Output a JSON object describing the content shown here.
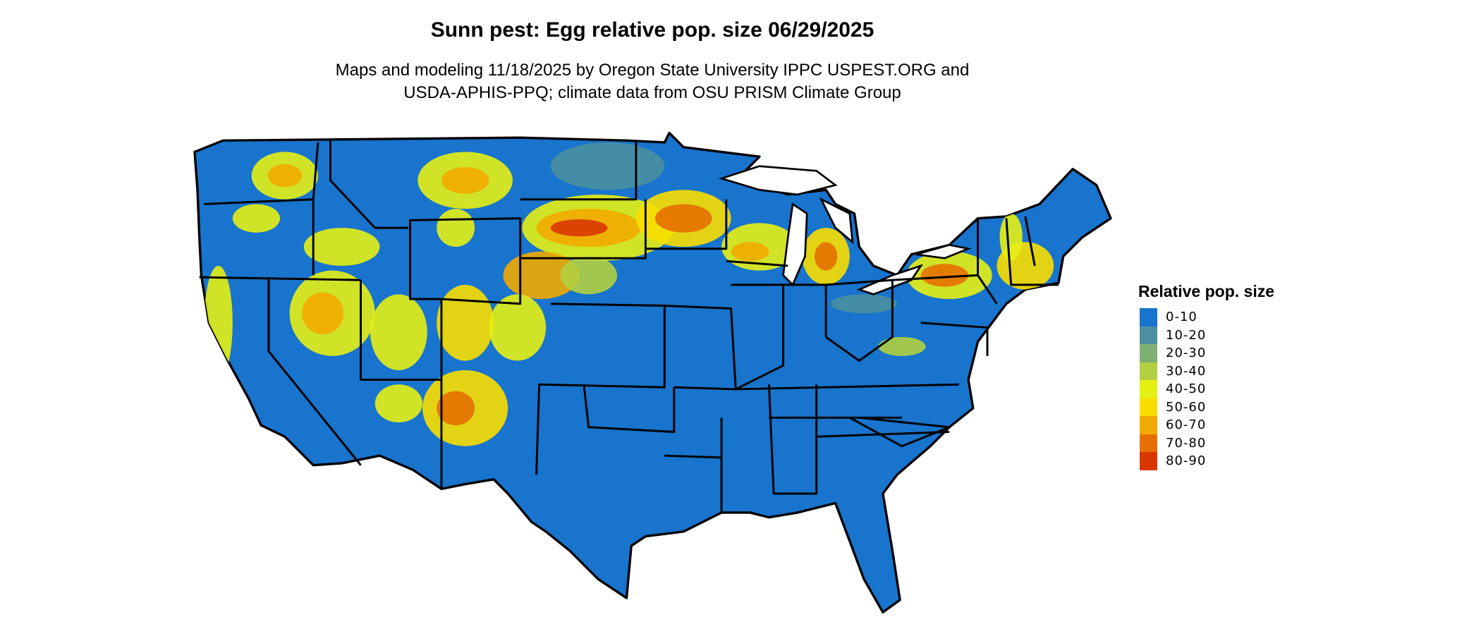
{
  "title": "Sunn pest: Egg relative pop. size 06/29/2025",
  "subtitle_line1": "Maps and modeling 11/18/2025 by Oregon State University IPPC USPEST.ORG and",
  "subtitle_line2": "USDA-APHIS-PPQ; climate data from OSU PRISM Climate Group",
  "legend": {
    "title": "Relative pop. size",
    "items": [
      {
        "label": "0-10",
        "color": "#1874CD"
      },
      {
        "label": "10-20",
        "color": "#4A90A0"
      },
      {
        "label": "20-30",
        "color": "#7DB072"
      },
      {
        "label": "30-40",
        "color": "#B2D040"
      },
      {
        "label": "40-50",
        "color": "#E5F014"
      },
      {
        "label": "50-60",
        "color": "#F8DE00"
      },
      {
        "label": "60-70",
        "color": "#F0AA00"
      },
      {
        "label": "70-80",
        "color": "#E57000"
      },
      {
        "label": "80-90",
        "color": "#D83800"
      }
    ]
  }
}
